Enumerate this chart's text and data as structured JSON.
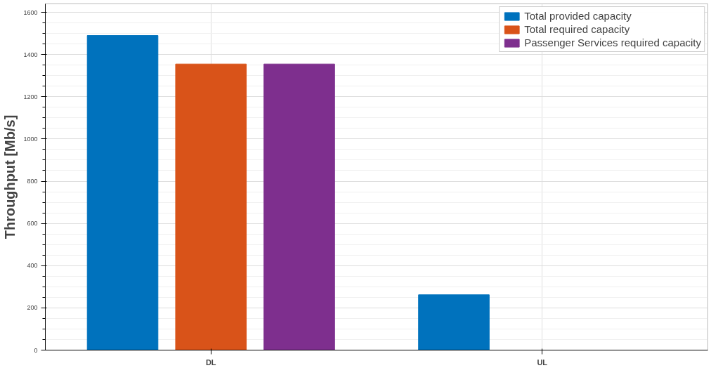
{
  "chart_data": {
    "type": "bar",
    "ylabel": "Throughput [Mb/s]",
    "categories": [
      "DL",
      "UL"
    ],
    "series": [
      {
        "name": "Total provided capacity",
        "color": "#0072bd",
        "values": [
          1490,
          262
        ]
      },
      {
        "name": "Total required capacity",
        "color": "#d95319",
        "values": [
          1355,
          0
        ]
      },
      {
        "name": "Passenger Services required capacity",
        "color": "#7e2f8e",
        "values": [
          1355,
          0
        ]
      }
    ],
    "ylim": [
      0,
      1640
    ],
    "yticks": [
      0,
      200,
      400,
      600,
      800,
      1000,
      1200,
      1400,
      1600
    ],
    "grid": true,
    "legend": "top right"
  }
}
